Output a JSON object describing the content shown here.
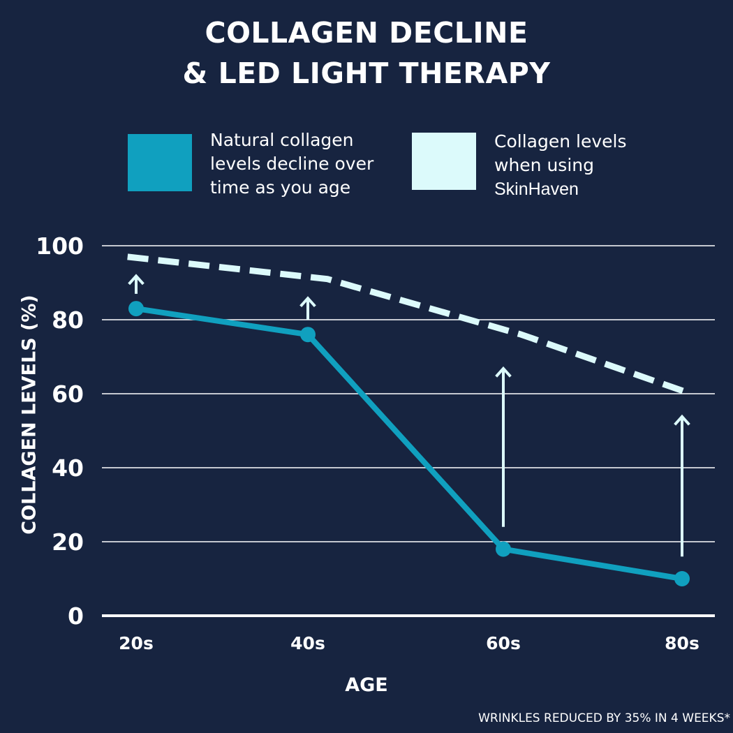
{
  "title": {
    "line1": "COLLAGEN DECLINE",
    "line2": "& LED LIGHT THERAPY"
  },
  "legend": [
    {
      "color": "#10a0bf",
      "lines": [
        "Natural collagen",
        "levels decline over",
        "time as you age"
      ]
    },
    {
      "color": "#dcfafb",
      "lines": [
        "Collagen levels",
        "when using",
        "SkinHaven"
      ]
    }
  ],
  "footnote": "WRINKLES REDUCED BY 35% IN 4 WEEKS*",
  "colors": {
    "background": "#172440",
    "natural": "#10a0bf",
    "therapy": "#dcfafb",
    "grid": "#ffffff"
  },
  "chart_data": {
    "type": "line",
    "title": "COLLAGEN DECLINE & LED LIGHT THERAPY",
    "xlabel": "AGE",
    "ylabel": "COLLAGEN LEVELS (%)",
    "categories": [
      "20s",
      "40s",
      "60s",
      "80s"
    ],
    "ylim": [
      0,
      100
    ],
    "yticks": [
      0,
      20,
      40,
      60,
      80,
      100
    ],
    "grid": true,
    "legend_position": "top",
    "series": [
      {
        "name": "Natural collagen levels decline over time as you age",
        "style": "solid-with-markers",
        "color": "#10a0bf",
        "values": [
          83,
          76,
          18,
          10
        ]
      },
      {
        "name": "Collagen levels when using SkinHaven",
        "style": "dashed",
        "color": "#dcfafb",
        "x": [
          19,
          42,
          62,
          81
        ],
        "values": [
          97,
          91,
          76,
          60
        ]
      }
    ],
    "annotations": [
      {
        "type": "arrow",
        "category": "20s",
        "from": 87,
        "to": 92
      },
      {
        "type": "arrow",
        "category": "40s",
        "from": 80,
        "to": 86
      },
      {
        "type": "arrow",
        "category": "60s",
        "from": 24,
        "to": 67
      },
      {
        "type": "arrow",
        "category": "80s",
        "from": 16,
        "to": 54
      }
    ]
  }
}
